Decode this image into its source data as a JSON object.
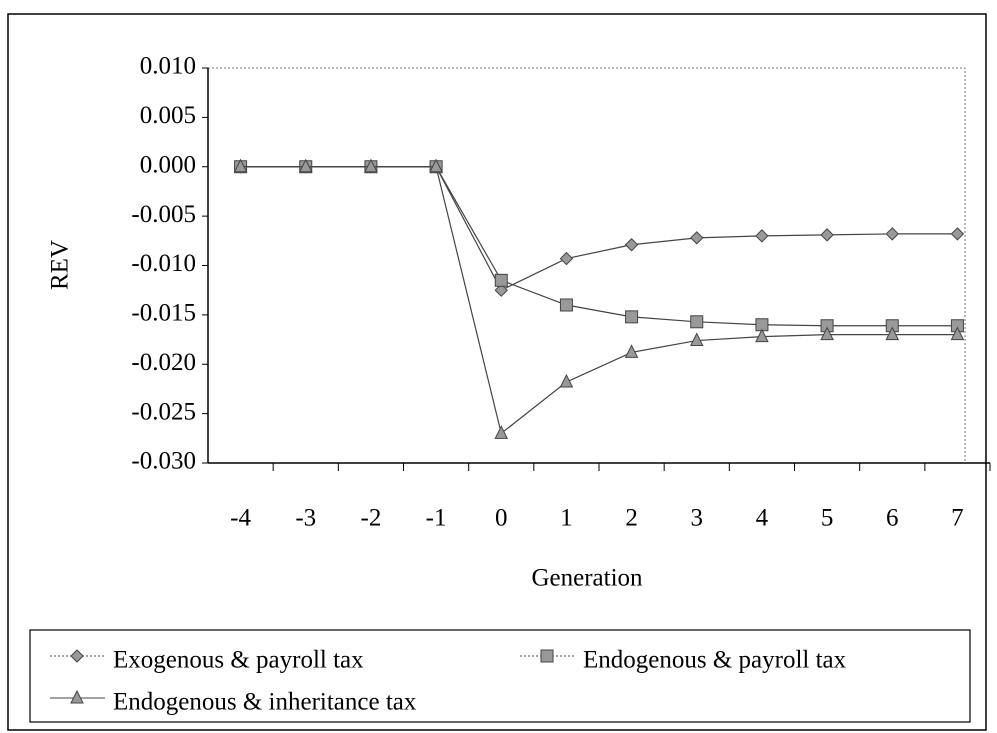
{
  "chart_data": {
    "type": "line",
    "xlabel": "Generation",
    "ylabel": "REV",
    "x": [
      -4,
      -3,
      -2,
      -1,
      0,
      1,
      2,
      3,
      4,
      5,
      6,
      7
    ],
    "series": [
      {
        "name": "Exogenous & payroll tax",
        "color": "#444444",
        "values": [
          0,
          0,
          0,
          0,
          -0.0125,
          -0.0093,
          -0.0079,
          -0.0072,
          -0.007,
          -0.0069,
          -0.0068,
          -0.0068
        ]
      },
      {
        "name": "Endogenous & payroll tax",
        "color": "#444444",
        "values": [
          0,
          0,
          0,
          0,
          -0.0115,
          -0.014,
          -0.0152,
          -0.0157,
          -0.016,
          -0.0161,
          -0.0161,
          -0.0161
        ]
      },
      {
        "name": "Endogenous & inheritance tax",
        "color": "#444444",
        "values": [
          0,
          0,
          0,
          0,
          -0.027,
          -0.0218,
          -0.0188,
          -0.0176,
          -0.0172,
          -0.017,
          -0.017,
          -0.017
        ]
      }
    ],
    "xlim": [
      -4.5,
      7.5
    ],
    "xticks": [
      -4,
      -3,
      -2,
      -1,
      0,
      1,
      2,
      3,
      4,
      5,
      6,
      7
    ],
    "ylim": [
      -0.03,
      0.01
    ],
    "yticks": [
      {
        "value": 0.01,
        "label": "0.010"
      },
      {
        "value": 0.005,
        "label": "0.005"
      },
      {
        "value": 0,
        "label": "0.000"
      },
      {
        "value": -0.005,
        "label": "-0.005"
      },
      {
        "value": -0.01,
        "label": "-0.010"
      },
      {
        "value": -0.015,
        "label": "-0.015"
      },
      {
        "value": -0.02,
        "label": "-0.020"
      },
      {
        "value": -0.025,
        "label": "-0.025"
      },
      {
        "value": -0.03,
        "label": "-0.030"
      }
    ],
    "legend": "bottom"
  }
}
